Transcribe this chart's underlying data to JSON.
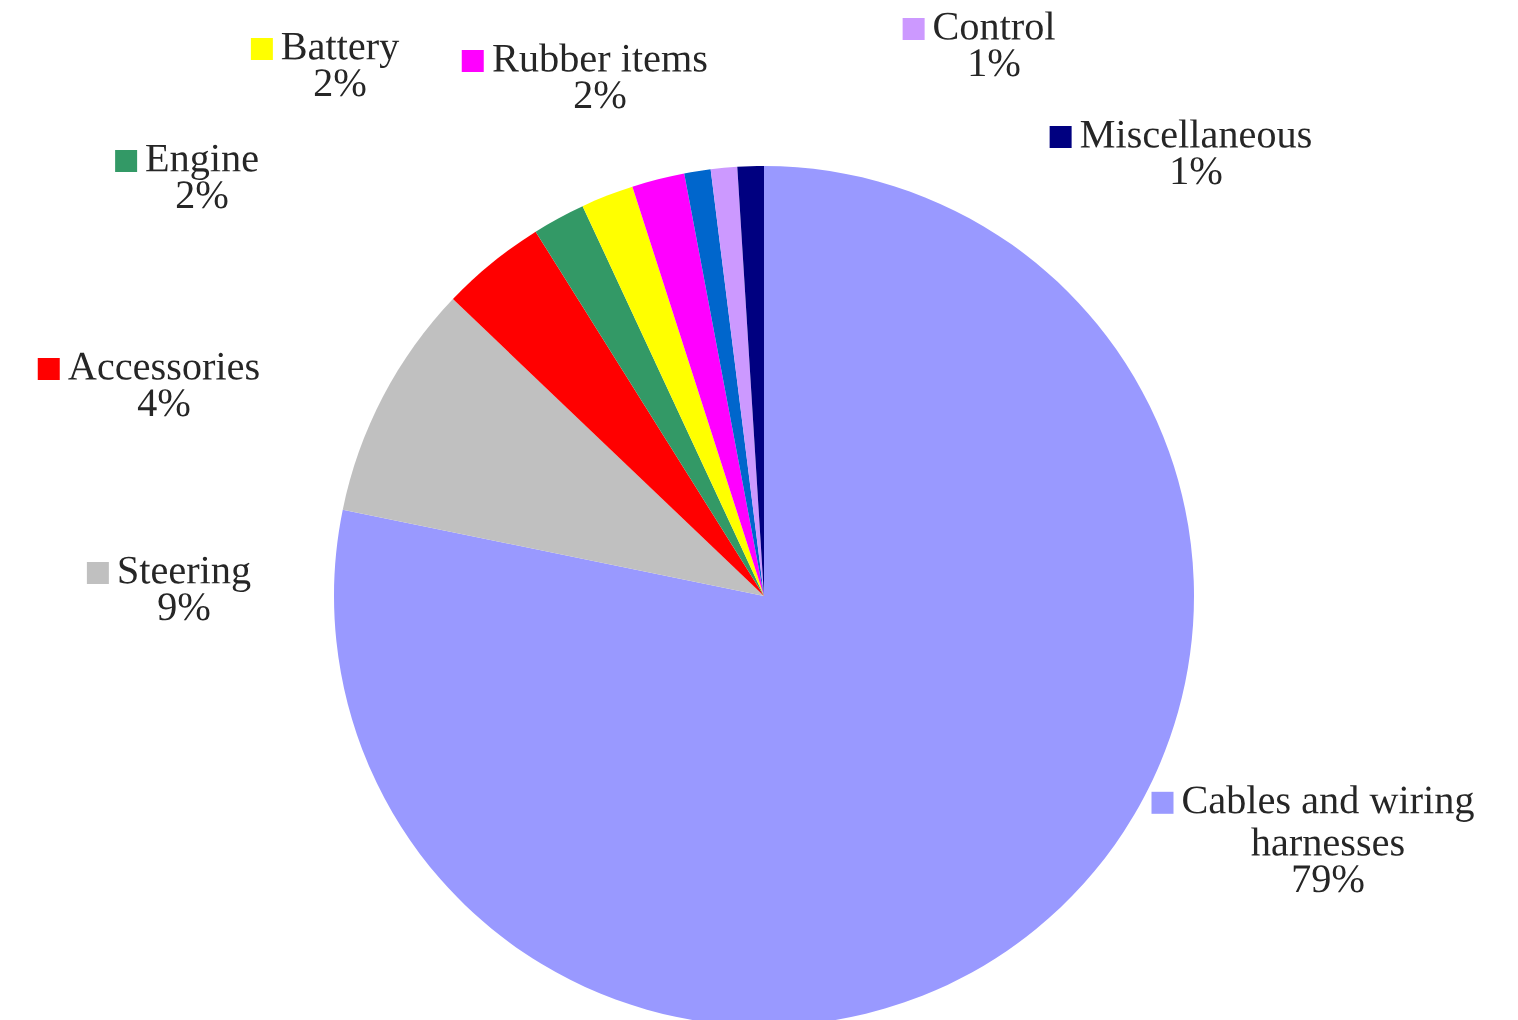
{
  "chart_data": {
    "type": "pie",
    "categories": [
      "Cables and wiring\nharnesses",
      "Steering",
      "Accessories",
      "Engine",
      "Battery",
      "Rubber items",
      null,
      "Control",
      "Miscellaneous"
    ],
    "values": [
      79,
      9,
      4,
      2,
      2,
      2,
      1,
      1,
      1
    ],
    "value_labels": [
      "79%",
      "9%",
      "4%",
      "2%",
      "2%",
      "2%",
      null,
      "1%",
      "1%"
    ],
    "colors": [
      "#9999ff",
      "#c0c0c0",
      "#ff0000",
      "#339966",
      "#ffff00",
      "#ff00ff",
      "#0066cc",
      "#cc99ff",
      "#000080"
    ],
    "legend": "top"
  }
}
